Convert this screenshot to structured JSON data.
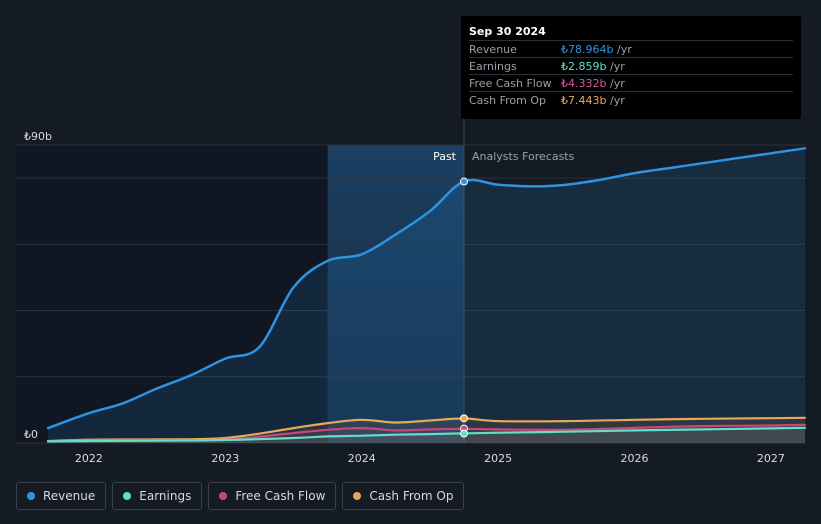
{
  "colors": {
    "revenue": "#2e93e3",
    "earnings": "#5fe0c8",
    "fcf": "#c8457e",
    "cfo": "#e8a85a",
    "background": "#151b25"
  },
  "tooltip": {
    "date": "Sep 30 2024",
    "rows": [
      {
        "label": "Revenue",
        "value": "₺78.964b",
        "unit": "/yr"
      },
      {
        "label": "Earnings",
        "value": "₺2.859b",
        "unit": "/yr"
      },
      {
        "label": "Free Cash Flow",
        "value": "₺4.332b",
        "unit": "/yr"
      },
      {
        "label": "Cash From Op",
        "value": "₺7.443b",
        "unit": "/yr"
      }
    ]
  },
  "legend": [
    {
      "label": "Revenue",
      "color_key": "revenue"
    },
    {
      "label": "Earnings",
      "color_key": "earnings"
    },
    {
      "label": "Free Cash Flow",
      "color_key": "fcf"
    },
    {
      "label": "Cash From Op",
      "color_key": "cfo"
    }
  ],
  "chart_data": {
    "type": "line",
    "title": "",
    "xlabel": "",
    "ylabel": "",
    "currency_unit": "TRY billions",
    "xlim": [
      2021.7,
      2027.25
    ],
    "ylim": [
      0,
      90
    ],
    "y_tick_labels": [
      {
        "value": 90,
        "label": "₺90b"
      },
      {
        "value": 0,
        "label": "₺0"
      }
    ],
    "x_ticks": [
      {
        "value": 2022,
        "label": "2022"
      },
      {
        "value": 2023,
        "label": "2023"
      },
      {
        "value": 2024,
        "label": "2024"
      },
      {
        "value": 2025,
        "label": "2025"
      },
      {
        "value": 2026,
        "label": "2026"
      },
      {
        "value": 2027,
        "label": "2027"
      }
    ],
    "gridlines_y": [
      0,
      20,
      40,
      60,
      80,
      90
    ],
    "highlight_start": 2023.75,
    "divider_x": 2024.75,
    "past_label": "Past",
    "forecast_label": "Analysts Forecasts",
    "series": [
      {
        "name": "Revenue",
        "key": "revenue",
        "points": [
          [
            2021.7,
            4.5
          ],
          [
            2022.0,
            9
          ],
          [
            2022.25,
            12
          ],
          [
            2022.5,
            16.5
          ],
          [
            2022.75,
            20.5
          ],
          [
            2023.0,
            25.5
          ],
          [
            2023.25,
            29
          ],
          [
            2023.5,
            47
          ],
          [
            2023.75,
            55
          ],
          [
            2024.0,
            57
          ],
          [
            2024.25,
            63
          ],
          [
            2024.5,
            70
          ],
          [
            2024.75,
            79
          ],
          [
            2025.0,
            78
          ],
          [
            2025.25,
            77.5
          ],
          [
            2025.5,
            78
          ],
          [
            2025.75,
            79.5
          ],
          [
            2026.0,
            81.5
          ],
          [
            2026.25,
            83
          ],
          [
            2026.5,
            84.5
          ],
          [
            2026.75,
            86
          ],
          [
            2027.0,
            87.5
          ],
          [
            2027.25,
            89
          ]
        ]
      },
      {
        "name": "Earnings",
        "key": "earnings",
        "points": [
          [
            2021.7,
            0.5
          ],
          [
            2022.0,
            0.6
          ],
          [
            2022.5,
            0.7
          ],
          [
            2023.0,
            0.9
          ],
          [
            2023.5,
            1.5
          ],
          [
            2023.75,
            2.0
          ],
          [
            2024.0,
            2.2
          ],
          [
            2024.25,
            2.5
          ],
          [
            2024.5,
            2.7
          ],
          [
            2024.75,
            2.9
          ],
          [
            2025.0,
            3.1
          ],
          [
            2025.5,
            3.4
          ],
          [
            2026.0,
            3.8
          ],
          [
            2026.5,
            4.1
          ],
          [
            2027.0,
            4.4
          ],
          [
            2027.25,
            4.6
          ]
        ]
      },
      {
        "name": "Free Cash Flow",
        "key": "fcf",
        "points": [
          [
            2021.7,
            0.5
          ],
          [
            2022.0,
            0.7
          ],
          [
            2022.5,
            0.8
          ],
          [
            2023.0,
            1.0
          ],
          [
            2023.5,
            3.0
          ],
          [
            2023.75,
            4.0
          ],
          [
            2024.0,
            4.5
          ],
          [
            2024.25,
            3.8
          ],
          [
            2024.5,
            4.1
          ],
          [
            2024.75,
            4.3
          ],
          [
            2025.0,
            4.1
          ],
          [
            2025.5,
            4.0
          ],
          [
            2026.0,
            4.6
          ],
          [
            2026.5,
            5.1
          ],
          [
            2027.0,
            5.3
          ],
          [
            2027.25,
            5.5
          ]
        ]
      },
      {
        "name": "Cash From Op",
        "key": "cfo",
        "points": [
          [
            2021.7,
            0.6
          ],
          [
            2022.0,
            1.0
          ],
          [
            2022.5,
            1.1
          ],
          [
            2023.0,
            1.5
          ],
          [
            2023.5,
            4.5
          ],
          [
            2023.75,
            6.0
          ],
          [
            2024.0,
            7.0
          ],
          [
            2024.25,
            6.2
          ],
          [
            2024.5,
            6.8
          ],
          [
            2024.75,
            7.4
          ],
          [
            2025.0,
            6.6
          ],
          [
            2025.5,
            6.6
          ],
          [
            2026.0,
            7.0
          ],
          [
            2026.5,
            7.3
          ],
          [
            2027.0,
            7.5
          ],
          [
            2027.25,
            7.6
          ]
        ]
      }
    ],
    "highlighted_point": {
      "x": 2024.75,
      "values": {
        "revenue": 78.964,
        "earnings": 2.859,
        "fcf": 4.332,
        "cfo": 7.443
      }
    }
  }
}
